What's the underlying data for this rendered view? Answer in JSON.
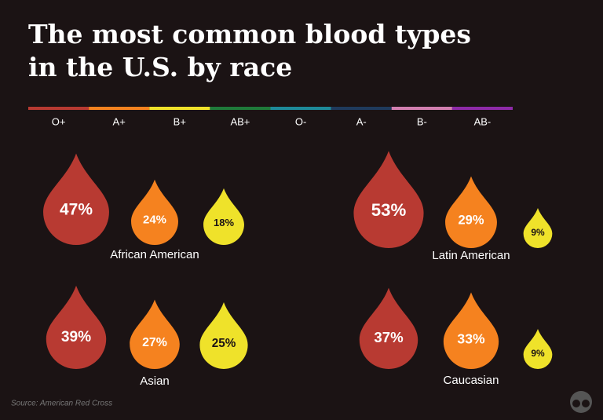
{
  "title": [
    "The most common blood types",
    "in the U.S. by race"
  ],
  "legend": {
    "categories": [
      "O+",
      "A+",
      "B+",
      "AB+",
      "O-",
      "A-",
      "B-",
      "AB-"
    ],
    "colors": [
      "#b83a32",
      "#f5821f",
      "#efe22a",
      "#1f7a3a",
      "#1e8a9a",
      "#1f3a5c",
      "#d27fb0",
      "#8e2aa8"
    ]
  },
  "source": "Source: American Red Cross",
  "chart_data": [
    {
      "type": "drop",
      "title": "African American",
      "values": [
        47,
        24,
        18
      ],
      "value_labels": [
        "47%",
        "24%",
        "18%"
      ],
      "colors": [
        "#b83a32",
        "#f5821f",
        "#efe22a"
      ]
    },
    {
      "type": "drop",
      "title": "Latin American",
      "values": [
        53,
        29,
        9
      ],
      "value_labels": [
        "53%",
        "29%",
        "9%"
      ],
      "colors": [
        "#b83a32",
        "#f5821f",
        "#efe22a"
      ]
    },
    {
      "type": "drop",
      "title": "Asian",
      "values": [
        39,
        27,
        25
      ],
      "value_labels": [
        "39%",
        "27%",
        "25%"
      ],
      "colors": [
        "#b83a32",
        "#f5821f",
        "#efe22a"
      ]
    },
    {
      "type": "drop",
      "title": "Caucasian",
      "values": [
        37,
        33,
        9
      ],
      "value_labels": [
        "37%",
        "33%",
        "9%"
      ],
      "colors": [
        "#b83a32",
        "#f5821f",
        "#efe22a"
      ]
    }
  ]
}
